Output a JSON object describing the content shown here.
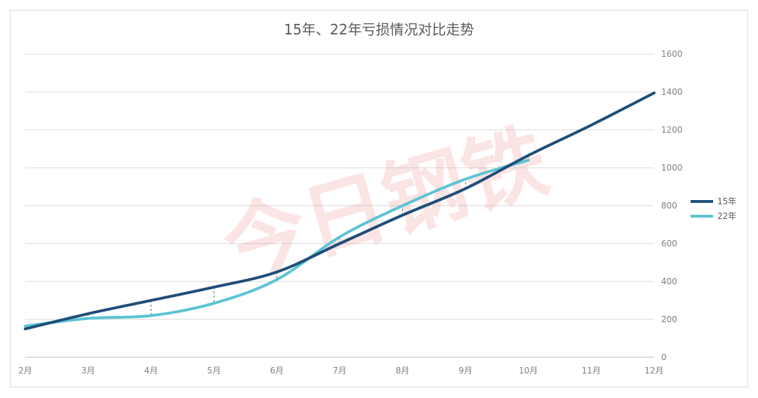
{
  "chart_data": {
    "type": "line",
    "title": "15年、22年亏损情况对比走势",
    "categories": [
      "2月",
      "3月",
      "4月",
      "5月",
      "6月",
      "7月",
      "8月",
      "9月",
      "10月",
      "11月",
      "12月"
    ],
    "series": [
      {
        "name": "15年",
        "color": "#1f4e79",
        "values": [
          150,
          230,
          300,
          370,
          450,
          600,
          750,
          890,
          1065,
          1225,
          1395
        ]
      },
      {
        "name": "22年",
        "color": "#5bc4d4",
        "values": [
          165,
          205,
          220,
          285,
          410,
          635,
          800,
          940,
          1040,
          null,
          null
        ]
      }
    ],
    "y_axis": {
      "position": "right",
      "ylim": [
        0,
        1600
      ],
      "ticks": [
        0,
        200,
        400,
        600,
        800,
        1000,
        1200,
        1400,
        1600
      ]
    },
    "grid": true,
    "legend": "right",
    "watermark": "今日钢铁"
  }
}
